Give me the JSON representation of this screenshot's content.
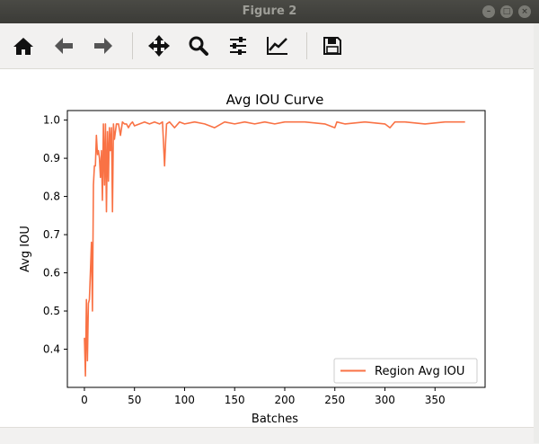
{
  "window": {
    "title": "Figure 2"
  },
  "toolbar": {
    "buttons": [
      {
        "name": "home",
        "icon": "home-icon"
      },
      {
        "name": "back",
        "icon": "arrow-left-icon"
      },
      {
        "name": "forward",
        "icon": "arrow-right-icon"
      },
      {
        "name": "pan",
        "icon": "move-icon"
      },
      {
        "name": "zoom",
        "icon": "magnifier-icon"
      },
      {
        "name": "subplots",
        "icon": "sliders-icon"
      },
      {
        "name": "edit-axes",
        "icon": "line-chart-icon"
      },
      {
        "name": "save",
        "icon": "floppy-disk-icon"
      }
    ]
  },
  "chart_data": {
    "type": "line",
    "title": "Avg IOU Curve",
    "xlabel": "Batches",
    "ylabel": "Avg IOU",
    "xlim": [
      -17,
      400
    ],
    "ylim": [
      0.3,
      1.025
    ],
    "xticks": [
      "0",
      "50",
      "100",
      "150",
      "200",
      "250",
      "300",
      "350"
    ],
    "yticks": [
      "0.4",
      "0.5",
      "0.6",
      "0.7",
      "0.8",
      "0.9",
      "1.0"
    ],
    "legend_position": "lower-right",
    "series": [
      {
        "name": "Region Avg IOU",
        "color": "#f97245",
        "x": [
          0,
          1,
          2,
          3,
          4,
          5,
          6,
          7,
          8,
          9,
          10,
          11,
          12,
          13,
          14,
          15,
          16,
          17,
          18,
          19,
          20,
          21,
          22,
          23,
          24,
          25,
          26,
          27,
          28,
          29,
          30,
          32,
          34,
          36,
          38,
          40,
          42,
          44,
          46,
          48,
          50,
          55,
          60,
          65,
          70,
          75,
          78,
          80,
          81,
          82,
          85,
          90,
          95,
          100,
          110,
          120,
          130,
          140,
          150,
          160,
          170,
          180,
          190,
          200,
          220,
          240,
          250,
          252,
          260,
          280,
          300,
          305,
          310,
          320,
          340,
          360,
          380
        ],
        "values": [
          0.43,
          0.33,
          0.53,
          0.37,
          0.52,
          0.53,
          0.6,
          0.68,
          0.5,
          0.83,
          0.88,
          0.88,
          0.96,
          0.91,
          0.92,
          0.9,
          0.85,
          0.92,
          0.79,
          0.99,
          0.83,
          0.99,
          0.76,
          0.97,
          0.84,
          0.98,
          0.92,
          0.98,
          0.76,
          0.99,
          0.95,
          0.99,
          0.99,
          0.96,
          0.995,
          0.99,
          0.99,
          0.98,
          0.99,
          0.995,
          0.985,
          0.99,
          0.995,
          0.99,
          0.995,
          0.99,
          0.995,
          0.88,
          0.94,
          0.99,
          0.995,
          0.98,
          0.995,
          0.99,
          0.995,
          0.99,
          0.98,
          0.995,
          0.99,
          0.995,
          0.99,
          0.995,
          0.99,
          0.995,
          0.995,
          0.99,
          0.98,
          0.995,
          0.99,
          0.995,
          0.99,
          0.98,
          0.995,
          0.995,
          0.99,
          0.995,
          0.995
        ]
      }
    ]
  }
}
